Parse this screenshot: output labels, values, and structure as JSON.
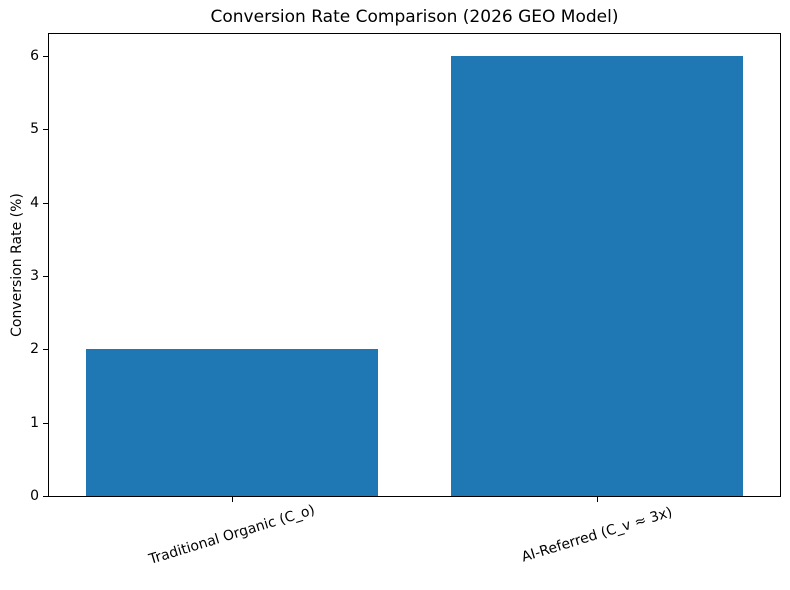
{
  "chart_data": {
    "type": "bar",
    "title": "Conversion Rate Comparison (2026 GEO Model)",
    "xlabel": "",
    "ylabel": "Conversion Rate (%)",
    "categories": [
      "Traditional Organic (C_o)",
      "AI-Referred (C_v ≈ 3x)"
    ],
    "values": [
      2,
      6
    ],
    "ytick_labels": [
      "0",
      "1",
      "2",
      "3",
      "4",
      "5",
      "6"
    ],
    "yticks": [
      0,
      1,
      2,
      3,
      4,
      5,
      6
    ],
    "ylim": [
      0,
      6.3
    ],
    "bar_color": "#1f77b4",
    "axis_color": "#000000",
    "background_color": "#ffffff",
    "grid": false,
    "legend": null,
    "bar_width_fraction": 0.8,
    "xtick_rotation_deg": 17
  }
}
